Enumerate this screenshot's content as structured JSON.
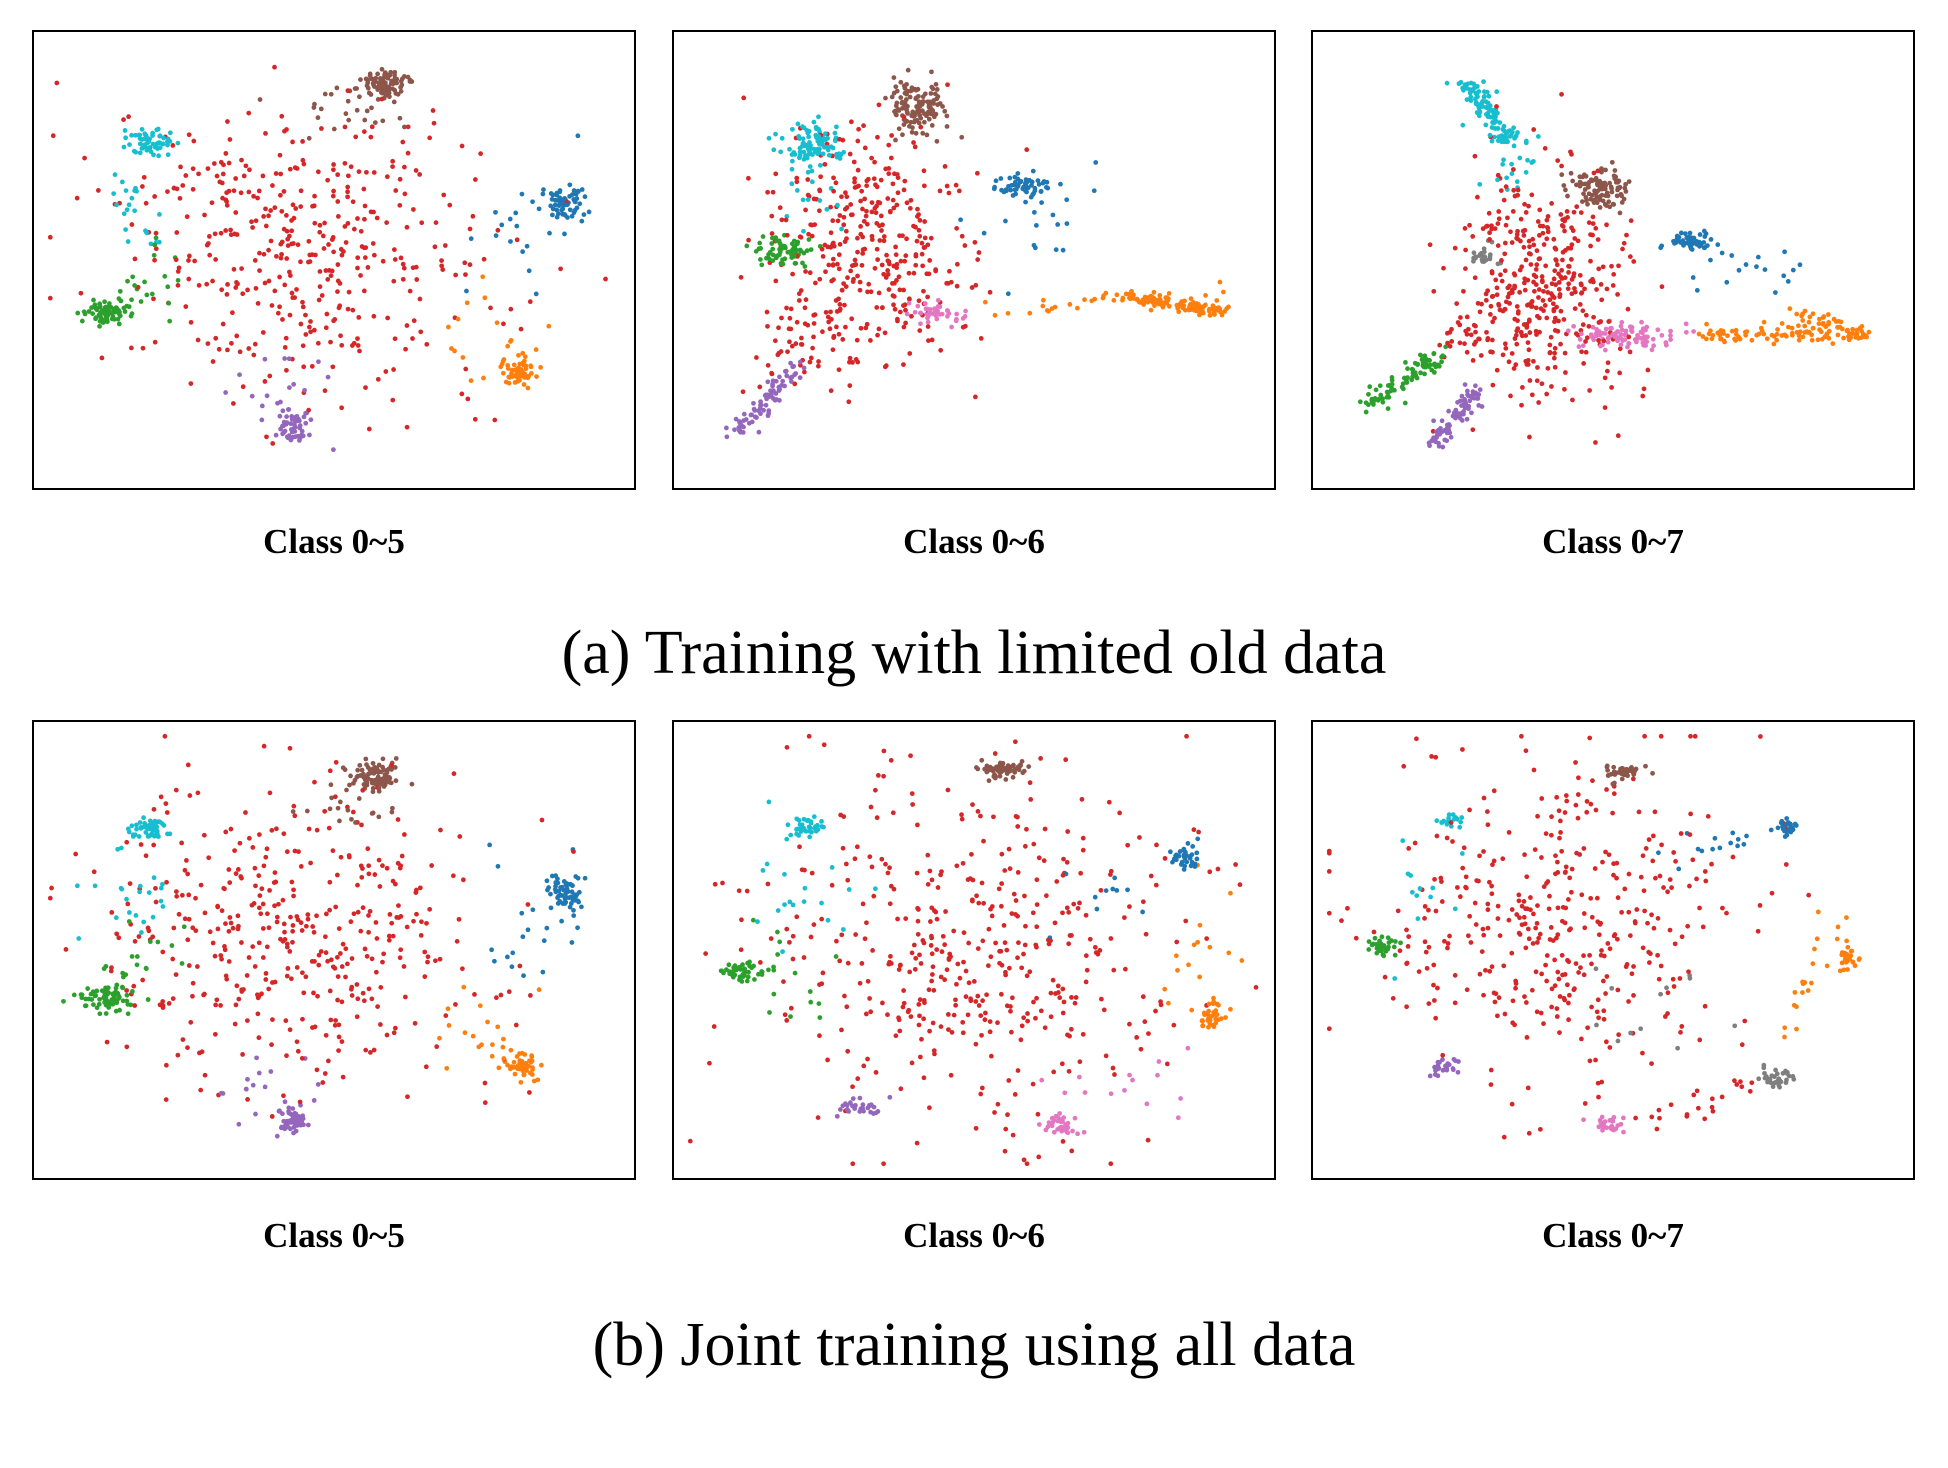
{
  "colors": {
    "0": "#1f77b4",
    "1": "#ff7f0e",
    "2": "#2ca02c",
    "3": "#d62728",
    "4": "#9467bd",
    "5": "#8c564b",
    "6": "#e377c2",
    "7": "#7f7f7f",
    "8": "#17becf"
  },
  "rows": [
    {
      "caption": "(a) Training with limited old data",
      "panels": [
        {
          "caption": "Class 0~5"
        },
        {
          "caption": "Class 0~6"
        },
        {
          "caption": "Class 0~7"
        }
      ]
    },
    {
      "caption": "(b) Joint training using all data",
      "panels": [
        {
          "caption": "Class 0~5"
        },
        {
          "caption": "Class 0~6"
        },
        {
          "caption": "Class 0~7"
        }
      ]
    }
  ],
  "chart_data": [
    {
      "type": "scatter",
      "title": "Class 0~5",
      "xlabel": "",
      "ylabel": "",
      "grid": false,
      "axes": false,
      "clusters": [
        {
          "color": "#8c564b",
          "x": 0.58,
          "y": 0.9,
          "sx": 0.02,
          "sy": 0.015,
          "n": 90
        },
        {
          "color": "#17becf",
          "x": 0.18,
          "y": 0.77,
          "sx": 0.018,
          "sy": 0.018,
          "n": 60
        },
        {
          "color": "#1f77b4",
          "x": 0.9,
          "y": 0.63,
          "sx": 0.015,
          "sy": 0.02,
          "n": 60
        },
        {
          "color": "#2ca02c",
          "x": 0.11,
          "y": 0.38,
          "sx": 0.02,
          "sy": 0.014,
          "n": 70
        },
        {
          "color": "#ff7f0e",
          "x": 0.82,
          "y": 0.24,
          "sx": 0.015,
          "sy": 0.018,
          "n": 55
        },
        {
          "color": "#9467bd",
          "x": 0.43,
          "y": 0.12,
          "sx": 0.015,
          "sy": 0.02,
          "n": 55
        },
        {
          "color": "#d62728",
          "x": 0.43,
          "y": 0.53,
          "sx": 0.17,
          "sy": 0.17,
          "n": 420
        },
        {
          "color": "#17becf",
          "x": 0.16,
          "y": 0.62,
          "sx": 0.04,
          "sy": 0.06,
          "n": 22
        },
        {
          "color": "#2ca02c",
          "x": 0.17,
          "y": 0.45,
          "sx": 0.04,
          "sy": 0.06,
          "n": 22
        },
        {
          "color": "#1f77b4",
          "x": 0.82,
          "y": 0.55,
          "sx": 0.05,
          "sy": 0.08,
          "n": 20
        },
        {
          "color": "#ff7f0e",
          "x": 0.76,
          "y": 0.32,
          "sx": 0.05,
          "sy": 0.06,
          "n": 18
        },
        {
          "color": "#9467bd",
          "x": 0.4,
          "y": 0.2,
          "sx": 0.06,
          "sy": 0.05,
          "n": 15
        },
        {
          "color": "#8c564b",
          "x": 0.52,
          "y": 0.84,
          "sx": 0.05,
          "sy": 0.03,
          "n": 22
        }
      ]
    },
    {
      "type": "scatter",
      "title": "Class 0~6",
      "xlabel": "",
      "ylabel": "",
      "grid": false,
      "axes": false,
      "clusters": [
        {
          "color": "#8c564b",
          "x": 0.4,
          "y": 0.85,
          "sx": 0.025,
          "sy": 0.03,
          "n": 130
        },
        {
          "color": "#17becf",
          "x": 0.22,
          "y": 0.77,
          "sx": 0.025,
          "sy": 0.022,
          "n": 90
        },
        {
          "color": "#1f77b4",
          "x": 0.58,
          "y": 0.67,
          "sx": 0.022,
          "sy": 0.015,
          "n": 60
        },
        {
          "color": "#2ca02c",
          "x": 0.17,
          "y": 0.52,
          "sx": 0.025,
          "sy": 0.018,
          "n": 70
        },
        {
          "color": "#e377c2",
          "x": 0.44,
          "y": 0.38,
          "sx": 0.025,
          "sy": 0.012,
          "n": 40
        },
        {
          "color": "#d62728",
          "x": 0.31,
          "y": 0.53,
          "sx": 0.09,
          "sy": 0.14,
          "n": 380
        },
        {
          "color": "#1f77b4",
          "x": 0.62,
          "y": 0.58,
          "sx": 0.06,
          "sy": 0.06,
          "n": 18
        },
        {
          "color": "#17becf",
          "x": 0.21,
          "y": 0.65,
          "sx": 0.04,
          "sy": 0.06,
          "n": 20
        }
      ],
      "lines": [
        {
          "color": "#ff7f0e",
          "from": [
            0.52,
            0.39
          ],
          "to": [
            0.92,
            0.41
          ],
          "spread": 0.012,
          "n": 40
        },
        {
          "color": "#ff7f0e",
          "from": [
            0.75,
            0.42
          ],
          "to": [
            0.93,
            0.38
          ],
          "spread": 0.008,
          "n": 110
        },
        {
          "color": "#9467bd",
          "from": [
            0.08,
            0.09
          ],
          "to": [
            0.19,
            0.25
          ],
          "spread": 0.01,
          "n": 80
        },
        {
          "color": "#d62728",
          "from": [
            0.14,
            0.22
          ],
          "to": [
            0.25,
            0.4
          ],
          "spread": 0.02,
          "n": 30
        }
      ]
    },
    {
      "type": "scatter",
      "title": "Class 0~7",
      "xlabel": "",
      "ylabel": "",
      "grid": false,
      "axes": false,
      "clusters": [
        {
          "color": "#8c564b",
          "x": 0.48,
          "y": 0.66,
          "sx": 0.025,
          "sy": 0.022,
          "n": 110
        },
        {
          "color": "#1f77b4",
          "x": 0.64,
          "y": 0.54,
          "sx": 0.022,
          "sy": 0.012,
          "n": 55
        },
        {
          "color": "#7f7f7f",
          "x": 0.28,
          "y": 0.51,
          "sx": 0.015,
          "sy": 0.012,
          "n": 25
        },
        {
          "color": "#e377c2",
          "x": 0.52,
          "y": 0.33,
          "sx": 0.04,
          "sy": 0.015,
          "n": 90
        },
        {
          "color": "#d62728",
          "x": 0.38,
          "y": 0.44,
          "sx": 0.07,
          "sy": 0.13,
          "n": 380
        },
        {
          "color": "#1f77b4",
          "x": 0.72,
          "y": 0.48,
          "sx": 0.06,
          "sy": 0.04,
          "n": 18
        }
      ],
      "lines": [
        {
          "color": "#17becf",
          "from": [
            0.24,
            0.92
          ],
          "to": [
            0.32,
            0.77
          ],
          "spread": 0.012,
          "n": 110
        },
        {
          "color": "#ff7f0e",
          "from": [
            0.66,
            0.33
          ],
          "to": [
            0.93,
            0.33
          ],
          "spread": 0.01,
          "n": 100
        },
        {
          "color": "#ff7f0e",
          "from": [
            0.82,
            0.38
          ],
          "to": [
            0.92,
            0.33
          ],
          "spread": 0.01,
          "n": 30
        },
        {
          "color": "#2ca02c",
          "from": [
            0.08,
            0.17
          ],
          "to": [
            0.2,
            0.28
          ],
          "spread": 0.012,
          "n": 90
        },
        {
          "color": "#9467bd",
          "from": [
            0.19,
            0.08
          ],
          "to": [
            0.27,
            0.21
          ],
          "spread": 0.01,
          "n": 80
        },
        {
          "color": "#d62728",
          "from": [
            0.22,
            0.3
          ],
          "to": [
            0.34,
            0.44
          ],
          "spread": 0.025,
          "n": 40
        },
        {
          "color": "#17becf",
          "from": [
            0.3,
            0.66
          ],
          "to": [
            0.36,
            0.78
          ],
          "spread": 0.02,
          "n": 18
        }
      ]
    },
    {
      "type": "scatter",
      "title": "Class 0~5",
      "xlabel": "",
      "ylabel": "",
      "grid": false,
      "axes": false,
      "clusters": [
        {
          "color": "#8c564b",
          "x": 0.57,
          "y": 0.9,
          "sx": 0.02,
          "sy": 0.015,
          "n": 90
        },
        {
          "color": "#17becf",
          "x": 0.18,
          "y": 0.78,
          "sx": 0.018,
          "sy": 0.015,
          "n": 55
        },
        {
          "color": "#1f77b4",
          "x": 0.9,
          "y": 0.63,
          "sx": 0.015,
          "sy": 0.02,
          "n": 60
        },
        {
          "color": "#2ca02c",
          "x": 0.11,
          "y": 0.39,
          "sx": 0.02,
          "sy": 0.015,
          "n": 70
        },
        {
          "color": "#ff7f0e",
          "x": 0.82,
          "y": 0.24,
          "sx": 0.015,
          "sy": 0.018,
          "n": 55
        },
        {
          "color": "#9467bd",
          "x": 0.43,
          "y": 0.11,
          "sx": 0.015,
          "sy": 0.02,
          "n": 55
        },
        {
          "color": "#d62728",
          "x": 0.43,
          "y": 0.52,
          "sx": 0.17,
          "sy": 0.17,
          "n": 420
        },
        {
          "color": "#17becf",
          "x": 0.16,
          "y": 0.63,
          "sx": 0.04,
          "sy": 0.06,
          "n": 22
        },
        {
          "color": "#2ca02c",
          "x": 0.17,
          "y": 0.46,
          "sx": 0.04,
          "sy": 0.06,
          "n": 22
        },
        {
          "color": "#1f77b4",
          "x": 0.82,
          "y": 0.55,
          "sx": 0.05,
          "sy": 0.08,
          "n": 20
        },
        {
          "color": "#ff7f0e",
          "x": 0.76,
          "y": 0.32,
          "sx": 0.05,
          "sy": 0.06,
          "n": 18
        },
        {
          "color": "#9467bd",
          "x": 0.4,
          "y": 0.19,
          "sx": 0.06,
          "sy": 0.05,
          "n": 15
        },
        {
          "color": "#8c564b",
          "x": 0.52,
          "y": 0.84,
          "sx": 0.05,
          "sy": 0.03,
          "n": 22
        }
      ]
    },
    {
      "type": "scatter",
      "title": "Class 0~6",
      "xlabel": "",
      "ylabel": "",
      "grid": false,
      "axes": false,
      "clusters": [
        {
          "color": "#8c564b",
          "x": 0.55,
          "y": 0.91,
          "sx": 0.02,
          "sy": 0.01,
          "n": 60
        },
        {
          "color": "#17becf",
          "x": 0.21,
          "y": 0.78,
          "sx": 0.015,
          "sy": 0.012,
          "n": 35
        },
        {
          "color": "#1f77b4",
          "x": 0.87,
          "y": 0.71,
          "sx": 0.012,
          "sy": 0.015,
          "n": 35
        },
        {
          "color": "#2ca02c",
          "x": 0.1,
          "y": 0.45,
          "sx": 0.018,
          "sy": 0.012,
          "n": 45
        },
        {
          "color": "#ff7f0e",
          "x": 0.91,
          "y": 0.35,
          "sx": 0.012,
          "sy": 0.018,
          "n": 35
        },
        {
          "color": "#9467bd",
          "x": 0.3,
          "y": 0.14,
          "sx": 0.018,
          "sy": 0.01,
          "n": 30
        },
        {
          "color": "#e377c2",
          "x": 0.65,
          "y": 0.1,
          "sx": 0.015,
          "sy": 0.015,
          "n": 35
        },
        {
          "color": "#d62728",
          "x": 0.5,
          "y": 0.5,
          "sx": 0.19,
          "sy": 0.2,
          "n": 440
        },
        {
          "color": "#17becf",
          "x": 0.22,
          "y": 0.65,
          "sx": 0.05,
          "sy": 0.08,
          "n": 20
        },
        {
          "color": "#2ca02c",
          "x": 0.18,
          "y": 0.4,
          "sx": 0.04,
          "sy": 0.08,
          "n": 15
        },
        {
          "color": "#ff7f0e",
          "x": 0.88,
          "y": 0.45,
          "sx": 0.03,
          "sy": 0.08,
          "n": 15
        },
        {
          "color": "#e377c2",
          "x": 0.74,
          "y": 0.2,
          "sx": 0.06,
          "sy": 0.05,
          "n": 15
        },
        {
          "color": "#1f77b4",
          "x": 0.74,
          "y": 0.62,
          "sx": 0.06,
          "sy": 0.05,
          "n": 12
        }
      ]
    },
    {
      "type": "scatter",
      "title": "Class 0~7",
      "xlabel": "",
      "ylabel": "",
      "grid": false,
      "axes": false,
      "clusters": [
        {
          "color": "#8c564b",
          "x": 0.52,
          "y": 0.91,
          "sx": 0.015,
          "sy": 0.01,
          "n": 40
        },
        {
          "color": "#17becf",
          "x": 0.22,
          "y": 0.8,
          "sx": 0.012,
          "sy": 0.01,
          "n": 20
        },
        {
          "color": "#1f77b4",
          "x": 0.8,
          "y": 0.78,
          "sx": 0.01,
          "sy": 0.01,
          "n": 25
        },
        {
          "color": "#2ca02c",
          "x": 0.1,
          "y": 0.51,
          "sx": 0.012,
          "sy": 0.012,
          "n": 35
        },
        {
          "color": "#ff7f0e",
          "x": 0.91,
          "y": 0.48,
          "sx": 0.01,
          "sy": 0.015,
          "n": 25
        },
        {
          "color": "#9467bd",
          "x": 0.21,
          "y": 0.23,
          "sx": 0.012,
          "sy": 0.01,
          "n": 25
        },
        {
          "color": "#7f7f7f",
          "x": 0.78,
          "y": 0.21,
          "sx": 0.015,
          "sy": 0.012,
          "n": 35
        },
        {
          "color": "#e377c2",
          "x": 0.49,
          "y": 0.1,
          "sx": 0.015,
          "sy": 0.01,
          "n": 30
        },
        {
          "color": "#d62728",
          "x": 0.41,
          "y": 0.56,
          "sx": 0.15,
          "sy": 0.18,
          "n": 400
        },
        {
          "color": "#7f7f7f",
          "x": 0.62,
          "y": 0.36,
          "sx": 0.06,
          "sy": 0.06,
          "n": 12
        },
        {
          "color": "#17becf",
          "x": 0.18,
          "y": 0.66,
          "sx": 0.04,
          "sy": 0.07,
          "n": 12
        }
      ],
      "lines": [
        {
          "color": "#ff7f0e",
          "from": [
            0.8,
            0.3
          ],
          "to": [
            0.89,
            0.6
          ],
          "spread": 0.012,
          "n": 20
        },
        {
          "color": "#d62728",
          "from": [
            0.55,
            0.1
          ],
          "to": [
            0.75,
            0.2
          ],
          "spread": 0.015,
          "n": 20
        },
        {
          "color": "#1f77b4",
          "from": [
            0.6,
            0.72
          ],
          "to": [
            0.78,
            0.76
          ],
          "spread": 0.02,
          "n": 14
        }
      ]
    }
  ]
}
